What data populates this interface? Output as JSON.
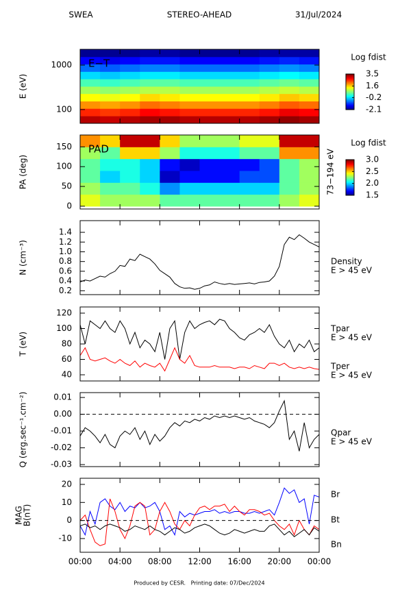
{
  "header": {
    "instrument": "SWEA",
    "spacecraft": "STEREO-AHEAD",
    "date": "31/Jul/2024"
  },
  "footer": "Produced by CESR.   Printing date: 07/Dec/2024",
  "chart_data": [
    {
      "type": "heatmap",
      "label": "E−T",
      "ylabel": "E (eV)",
      "yscale": "log",
      "ylim": [
        49,
        2260
      ],
      "yticks": [
        100,
        1000
      ],
      "xlim": [
        0,
        24
      ],
      "xbins": [
        0,
        2,
        4,
        6,
        8,
        10,
        12,
        14,
        16,
        18,
        20,
        22,
        24
      ],
      "ybins": [
        49,
        72,
        106,
        155,
        228,
        333,
        489,
        717,
        1051,
        1541,
        2260
      ],
      "z": [
        [
          3.2,
          3.1,
          3.2,
          3.3,
          3.3,
          3.2,
          3.2,
          3.2,
          3.2,
          3.3,
          3.4,
          3.3
        ],
        [
          2.6,
          2.5,
          2.6,
          2.8,
          2.7,
          2.6,
          2.6,
          2.6,
          2.6,
          2.7,
          2.9,
          2.8
        ],
        [
          2.0,
          1.9,
          2.0,
          2.2,
          2.1,
          2.0,
          2.0,
          2.0,
          2.0,
          2.1,
          2.3,
          2.2
        ],
        [
          1.4,
          1.3,
          1.4,
          1.6,
          1.5,
          1.4,
          1.4,
          1.4,
          1.4,
          1.5,
          1.7,
          1.6
        ],
        [
          0.9,
          0.8,
          0.9,
          1.0,
          1.0,
          0.9,
          0.9,
          0.9,
          0.9,
          1.0,
          1.1,
          1.0
        ],
        [
          0.4,
          0.3,
          0.4,
          0.5,
          0.5,
          0.4,
          0.4,
          0.4,
          0.4,
          0.5,
          0.6,
          0.5
        ],
        [
          -0.2,
          -0.3,
          -0.2,
          -0.1,
          -0.1,
          -0.2,
          -0.2,
          -0.2,
          -0.2,
          -0.1,
          0.0,
          -0.1
        ],
        [
          -0.8,
          -0.9,
          -0.8,
          -0.7,
          -0.7,
          -0.8,
          -0.8,
          -0.8,
          -0.8,
          -0.7,
          -0.6,
          -0.7
        ],
        [
          -1.4,
          -1.5,
          -1.4,
          -1.3,
          -1.3,
          -1.4,
          -1.4,
          -1.4,
          -1.4,
          -1.3,
          -1.2,
          -1.3
        ],
        [
          -2.0,
          -2.0,
          -2.0,
          -1.9,
          -1.9,
          -2.0,
          -2.0,
          -2.0,
          -2.0,
          -1.9,
          -1.9,
          -1.9
        ]
      ],
      "colormap": "jet",
      "colorbar": {
        "title": "Log fdist",
        "clim": [
          -2.1,
          3.5
        ],
        "ticks": [
          3.5,
          1.6,
          -0.2,
          -2.1
        ]
      }
    },
    {
      "type": "heatmap",
      "label": "PAD",
      "ylabel": "PA (deg)",
      "right_label": "73−194 eV",
      "ylim": [
        -7,
        180
      ],
      "yticks": [
        0,
        50,
        100,
        150
      ],
      "xlim": [
        0,
        24
      ],
      "xbins": [
        0,
        2,
        4,
        6,
        8,
        10,
        12,
        14,
        16,
        18,
        20,
        22,
        24
      ],
      "ybins": [
        0,
        30,
        60,
        90,
        120,
        150,
        180
      ],
      "z": [
        [
          2.4,
          2.3,
          2.3,
          2.3,
          2.2,
          2.2,
          2.2,
          2.2,
          2.2,
          2.2,
          2.3,
          2.4
        ],
        [
          2.3,
          2.2,
          2.2,
          2.1,
          1.9,
          2.0,
          2.0,
          2.0,
          2.0,
          2.0,
          2.2,
          2.3
        ],
        [
          2.2,
          2.0,
          2.1,
          2.0,
          1.6,
          1.7,
          1.7,
          1.7,
          1.8,
          1.8,
          2.2,
          2.3
        ],
        [
          2.2,
          2.1,
          2.1,
          2.0,
          1.7,
          1.6,
          1.7,
          1.7,
          1.7,
          1.8,
          2.2,
          2.3
        ],
        [
          2.3,
          2.2,
          2.5,
          2.5,
          2.3,
          2.1,
          2.1,
          2.1,
          2.2,
          2.2,
          2.6,
          2.6
        ],
        [
          2.6,
          2.5,
          2.9,
          2.9,
          2.5,
          2.3,
          2.3,
          2.3,
          2.4,
          2.4,
          2.9,
          2.9
        ]
      ],
      "colormap": "jet",
      "colorbar": {
        "title": "Log fdist",
        "clim": [
          1.5,
          3.0
        ],
        "ticks": [
          {
            "value": 3.0,
            "label": "3.0"
          },
          2.5,
          {
            "value": 2.0,
            "label": "2.0"
          },
          1.5
        ]
      }
    },
    {
      "type": "line",
      "ylabel": "N (cm⁻³)",
      "ylim": [
        0.12,
        1.64
      ],
      "yticks": [
        0.2,
        0.4,
        0.6,
        0.8,
        {
          "value": 1.0,
          "label": "1.0"
        },
        1.2,
        1.4
      ],
      "xlim": [
        0,
        24
      ],
      "x": [
        0,
        0.5,
        1,
        1.5,
        2,
        2.5,
        3,
        3.5,
        4,
        4.5,
        5,
        5.5,
        6,
        6.5,
        7,
        7.5,
        8,
        8.5,
        9,
        9.5,
        10,
        10.5,
        11,
        11.5,
        12,
        12.5,
        13,
        13.5,
        14,
        14.5,
        15,
        15.5,
        16,
        16.5,
        17,
        17.5,
        18,
        18.5,
        19,
        19.5,
        20,
        20.5,
        21,
        21.5,
        22,
        22.5,
        23,
        23.5,
        24
      ],
      "series": [
        {
          "name": "Density",
          "annotation": "E > 45 eV",
          "color": "#000000",
          "values": [
            0.38,
            0.42,
            0.4,
            0.45,
            0.5,
            0.48,
            0.55,
            0.6,
            0.72,
            0.7,
            0.85,
            0.82,
            0.95,
            0.9,
            0.85,
            0.75,
            0.62,
            0.55,
            0.48,
            0.35,
            0.28,
            0.25,
            0.26,
            0.23,
            0.25,
            0.3,
            0.32,
            0.38,
            0.35,
            0.33,
            0.35,
            0.33,
            0.34,
            0.35,
            0.36,
            0.34,
            0.37,
            0.38,
            0.4,
            0.5,
            0.7,
            1.15,
            1.3,
            1.25,
            1.35,
            1.28,
            1.2,
            1.15,
            1.1
          ]
        }
      ]
    },
    {
      "type": "line",
      "ylabel": "T (eV)",
      "ylim": [
        32,
        128
      ],
      "yticks": [
        40,
        60,
        80,
        100,
        120
      ],
      "xlim": [
        0,
        24
      ],
      "x": [
        0,
        0.5,
        1,
        1.5,
        2,
        2.5,
        3,
        3.5,
        4,
        4.5,
        5,
        5.5,
        6,
        6.5,
        7,
        7.5,
        8,
        8.5,
        9,
        9.5,
        10,
        10.5,
        11,
        11.5,
        12,
        12.5,
        13,
        13.5,
        14,
        14.5,
        15,
        15.5,
        16,
        16.5,
        17,
        17.5,
        18,
        18.5,
        19,
        19.5,
        20,
        20.5,
        21,
        21.5,
        22,
        22.5,
        23,
        23.5,
        24
      ],
      "series": [
        {
          "name": "Tpar",
          "annotation": "E > 45 eV",
          "color": "#000000",
          "values": [
            105,
            80,
            110,
            105,
            100,
            110,
            100,
            95,
            110,
            100,
            80,
            95,
            75,
            85,
            80,
            70,
            95,
            60,
            100,
            110,
            60,
            95,
            110,
            100,
            105,
            108,
            110,
            105,
            112,
            110,
            100,
            95,
            88,
            85,
            92,
            95,
            100,
            95,
            105,
            90,
            80,
            75,
            85,
            70,
            80,
            75,
            85,
            70,
            75
          ]
        },
        {
          "name": "Tper",
          "annotation": "E > 45 eV",
          "color": "#ff0000",
          "values": [
            65,
            75,
            60,
            58,
            60,
            62,
            58,
            55,
            60,
            55,
            52,
            58,
            50,
            55,
            52,
            50,
            55,
            45,
            60,
            75,
            60,
            55,
            65,
            52,
            50,
            50,
            50,
            52,
            50,
            50,
            50,
            48,
            50,
            50,
            48,
            52,
            50,
            48,
            55,
            55,
            52,
            55,
            50,
            48,
            50,
            48,
            50,
            48,
            47
          ]
        }
      ]
    },
    {
      "type": "line",
      "ylabel": "Q (erg.sec⁻¹.cm⁻²)",
      "ylim": [
        -0.0312,
        0.0129
      ],
      "yticks": [
        0.01,
        {
          "value": 0,
          "label": "0.00"
        },
        -0.01,
        -0.02,
        -0.03
      ],
      "zero_line": true,
      "xlim": [
        0,
        24
      ],
      "x": [
        0,
        0.5,
        1,
        1.5,
        2,
        2.5,
        3,
        3.5,
        4,
        4.5,
        5,
        5.5,
        6,
        6.5,
        7,
        7.5,
        8,
        8.5,
        9,
        9.5,
        10,
        10.5,
        11,
        11.5,
        12,
        12.5,
        13,
        13.5,
        14,
        14.5,
        15,
        15.5,
        16,
        16.5,
        17,
        17.5,
        18,
        18.5,
        19,
        19.5,
        20,
        20.5,
        21,
        21.5,
        22,
        22.5,
        23,
        23.5,
        24
      ],
      "series": [
        {
          "name": "Qpar",
          "annotation": "E > 45 eV",
          "color": "#000000",
          "values": [
            -0.013,
            -0.008,
            -0.01,
            -0.013,
            -0.017,
            -0.012,
            -0.018,
            -0.02,
            -0.013,
            -0.01,
            -0.012,
            -0.008,
            -0.015,
            -0.01,
            -0.018,
            -0.012,
            -0.016,
            -0.013,
            -0.008,
            -0.005,
            -0.007,
            -0.004,
            -0.005,
            -0.003,
            -0.004,
            -0.002,
            -0.003,
            -0.001,
            -0.002,
            -0.001,
            -0.002,
            -0.001,
            -0.002,
            -0.003,
            -0.002,
            -0.004,
            -0.005,
            -0.006,
            -0.008,
            -0.005,
            0.002,
            0.008,
            -0.015,
            -0.01,
            -0.022,
            -0.005,
            -0.02,
            -0.015,
            -0.012
          ]
        }
      ]
    },
    {
      "type": "line",
      "ylabel": [
        "MAG",
        "B(nT)"
      ],
      "ylim": [
        -17.6,
        23.4
      ],
      "yticks": [
        -10,
        0,
        10,
        20
      ],
      "zero_line": true,
      "xlim": [
        0,
        24
      ],
      "xticks": [
        {
          "value": 0,
          "label": "00:00"
        },
        {
          "value": 4,
          "label": "04:00"
        },
        {
          "value": 8,
          "label": "08:00"
        },
        {
          "value": 12,
          "label": "12:00"
        },
        {
          "value": 16,
          "label": "16:00"
        },
        {
          "value": 20,
          "label": "20:00"
        },
        {
          "value": 24,
          "label": "00:00"
        }
      ],
      "x": [
        0,
        0.5,
        1,
        1.5,
        2,
        2.5,
        3,
        3.5,
        4,
        4.5,
        5,
        5.5,
        6,
        6.5,
        7,
        7.5,
        8,
        8.5,
        9,
        9.5,
        10,
        10.5,
        11,
        11.5,
        12,
        12.5,
        13,
        13.5,
        14,
        14.5,
        15,
        15.5,
        16,
        16.5,
        17,
        17.5,
        18,
        18.5,
        19,
        19.5,
        20,
        20.5,
        21,
        21.5,
        22,
        22.5,
        23,
        23.5,
        24
      ],
      "series": [
        {
          "name": "Br",
          "color": "#0000ff",
          "label_color": "#000000",
          "values": [
            -3,
            -8,
            5,
            -2,
            10,
            12,
            8,
            6,
            10,
            5,
            8,
            7,
            10,
            7,
            8,
            10,
            5,
            -5,
            -3,
            -8,
            5,
            2,
            4,
            3,
            4,
            5,
            5,
            6,
            4,
            5,
            4,
            5,
            5,
            4,
            4,
            5,
            4,
            5,
            6,
            3,
            10,
            18,
            15,
            17,
            10,
            12,
            -2,
            14,
            13
          ]
        },
        {
          "name": "Bt",
          "color": "#ff0000",
          "label_color": "#ff0000",
          "values": [
            0,
            3,
            -5,
            -12,
            -14,
            -13,
            12,
            5,
            -5,
            -10,
            -3,
            8,
            10,
            8,
            -8,
            -5,
            5,
            10,
            5,
            -2,
            -5,
            0,
            -3,
            3,
            7,
            8,
            6,
            8,
            8,
            9,
            5,
            8,
            5,
            3,
            6,
            6,
            5,
            3,
            4,
            0,
            -3,
            -5,
            -2,
            -8,
            0,
            -5,
            -8,
            -3,
            -5
          ]
        },
        {
          "name": "Bn",
          "color": "#000000",
          "label_color": "#0000ff",
          "values": [
            -3,
            -2,
            -4,
            -3,
            -5,
            -3,
            -2,
            -3,
            -4,
            -6,
            -5,
            -3,
            -4,
            -5,
            -3,
            -5,
            -6,
            -8,
            -6,
            -4,
            -5,
            -7,
            -6,
            -4,
            -3,
            -2,
            -3,
            -5,
            -7,
            -8,
            -7,
            -5,
            -6,
            -7,
            -6,
            -5,
            -6,
            -6,
            -3,
            -2,
            -5,
            -8,
            -6,
            -9,
            -7,
            -5,
            -8,
            -4,
            -6
          ]
        }
      ]
    }
  ]
}
